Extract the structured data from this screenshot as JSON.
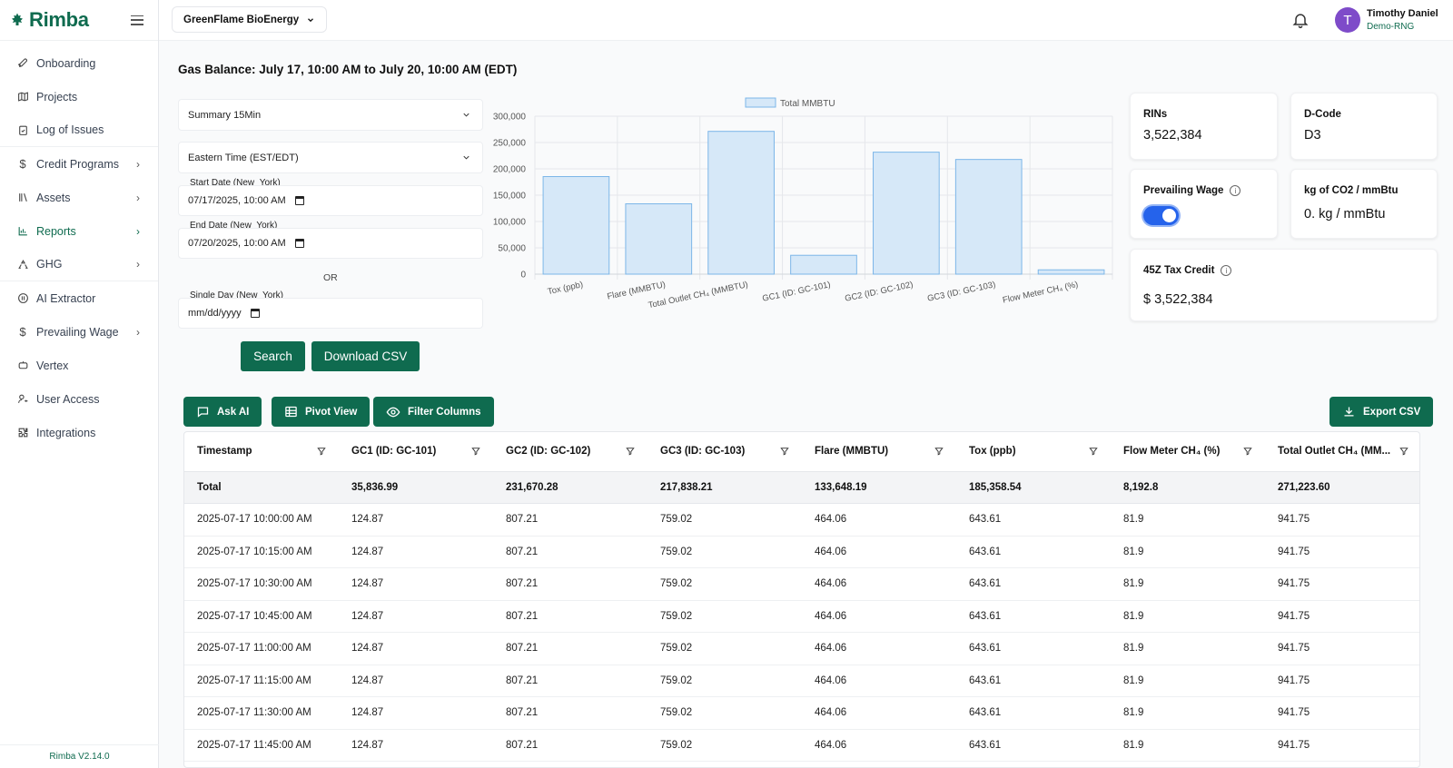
{
  "sidebar": {
    "brand": "Rimba",
    "items": [
      {
        "label": "Onboarding",
        "icon": "rocket-icon"
      },
      {
        "label": "Projects",
        "icon": "map-icon"
      },
      {
        "label": "Log of Issues",
        "icon": "clipboard-check-icon"
      },
      {
        "label": "Credit Programs",
        "icon": "dollar-icon"
      },
      {
        "label": "Assets",
        "icon": "library-icon"
      },
      {
        "label": "Reports",
        "icon": "bar-chart-icon"
      },
      {
        "label": "GHG",
        "icon": "recycle-icon"
      },
      {
        "label": "AI Extractor",
        "icon": "ai-circle-icon"
      },
      {
        "label": "Prevailing Wage",
        "icon": "dollar-icon"
      },
      {
        "label": "Vertex",
        "icon": "bot-icon"
      },
      {
        "label": "User Access",
        "icon": "user-key-icon"
      },
      {
        "label": "Integrations",
        "icon": "puzzle-icon"
      }
    ],
    "version": "Rimba V2.14.0"
  },
  "header": {
    "org": "GreenFlame BioEnergy",
    "user_initial": "T",
    "user_name": "Timothy Daniel",
    "user_sub": "Demo-RNG"
  },
  "page": {
    "title": "Gas Balance: July 17, 10:00 AM to July 20, 10:00 AM (EDT)"
  },
  "filters": {
    "interval": "Summary 15Min",
    "timezone": "Eastern Time (EST/EDT)",
    "start_label": "Start Date (New_York)",
    "start_value": "07/17/2025, 10:00 AM",
    "end_label": "End Date (New_York)",
    "end_value": "07/20/2025, 10:00 AM",
    "or": "OR",
    "single_label": "Single Day (New_York)",
    "single_value": "mm/dd/yyyy",
    "search": "Search",
    "download": "Download CSV"
  },
  "chart_data": {
    "type": "bar",
    "categories": [
      "Tox (ppb)",
      "Flare (MMBTU)",
      "Total Outlet CH₄ (MMBTU)",
      "GC1 (ID: GC-101)",
      "GC2 (ID: GC-102)",
      "GC3 (ID: GC-103)",
      "Flow Meter CH₄ (%)"
    ],
    "series": [
      {
        "name": "Total MMBTU",
        "values": [
          185358.54,
          133648.19,
          271223.6,
          35836.99,
          231670.28,
          217838.21,
          8192.8
        ]
      }
    ],
    "yticks": [
      "0",
      "50,000",
      "100,000",
      "150,000",
      "200,000",
      "250,000",
      "300,000"
    ],
    "ylim": [
      0,
      300000
    ],
    "legend": "top",
    "grid": true,
    "bar_color": "#d6e8f8",
    "bar_border": "#7cb6e8"
  },
  "cards": {
    "rins_label": "RINs",
    "rins_value": "3,522,384",
    "dcode_label": "D-Code",
    "dcode_value": "D3",
    "wage_label": "Prevailing Wage",
    "wage_on": true,
    "kg_label": "kg of CO2 / mmBtu",
    "kg_value": "0. kg / mmBtu",
    "tax_label": "45Z Tax Credit",
    "tax_value": "$ 3,522,384"
  },
  "toolbar": {
    "ask_ai": "Ask AI",
    "pivot": "Pivot View",
    "filter": "Filter Columns",
    "export": "Export CSV"
  },
  "table": {
    "columns": [
      "Timestamp",
      "GC1 (ID: GC-101)",
      "GC2 (ID: GC-102)",
      "GC3 (ID: GC-103)",
      "Flare (MMBTU)",
      "Tox (ppb)",
      "Flow Meter CH₄ (%)",
      "Total Outlet CH₄ (MM..."
    ],
    "total": [
      "Total",
      "35,836.99",
      "231,670.28",
      "217,838.21",
      "133,648.19",
      "185,358.54",
      "8,192.8",
      "271,223.60"
    ],
    "rows": [
      [
        "2025-07-17 10:00:00 AM",
        "124.87",
        "807.21",
        "759.02",
        "464.06",
        "643.61",
        "81.9",
        "941.75"
      ],
      [
        "2025-07-17 10:15:00 AM",
        "124.87",
        "807.21",
        "759.02",
        "464.06",
        "643.61",
        "81.9",
        "941.75"
      ],
      [
        "2025-07-17 10:30:00 AM",
        "124.87",
        "807.21",
        "759.02",
        "464.06",
        "643.61",
        "81.9",
        "941.75"
      ],
      [
        "2025-07-17 10:45:00 AM",
        "124.87",
        "807.21",
        "759.02",
        "464.06",
        "643.61",
        "81.9",
        "941.75"
      ],
      [
        "2025-07-17 11:00:00 AM",
        "124.87",
        "807.21",
        "759.02",
        "464.06",
        "643.61",
        "81.9",
        "941.75"
      ],
      [
        "2025-07-17 11:15:00 AM",
        "124.87",
        "807.21",
        "759.02",
        "464.06",
        "643.61",
        "81.9",
        "941.75"
      ],
      [
        "2025-07-17 11:30:00 AM",
        "124.87",
        "807.21",
        "759.02",
        "464.06",
        "643.61",
        "81.9",
        "941.75"
      ],
      [
        "2025-07-17 11:45:00 AM",
        "124.87",
        "807.21",
        "759.02",
        "464.06",
        "643.61",
        "81.9",
        "941.75"
      ]
    ]
  }
}
